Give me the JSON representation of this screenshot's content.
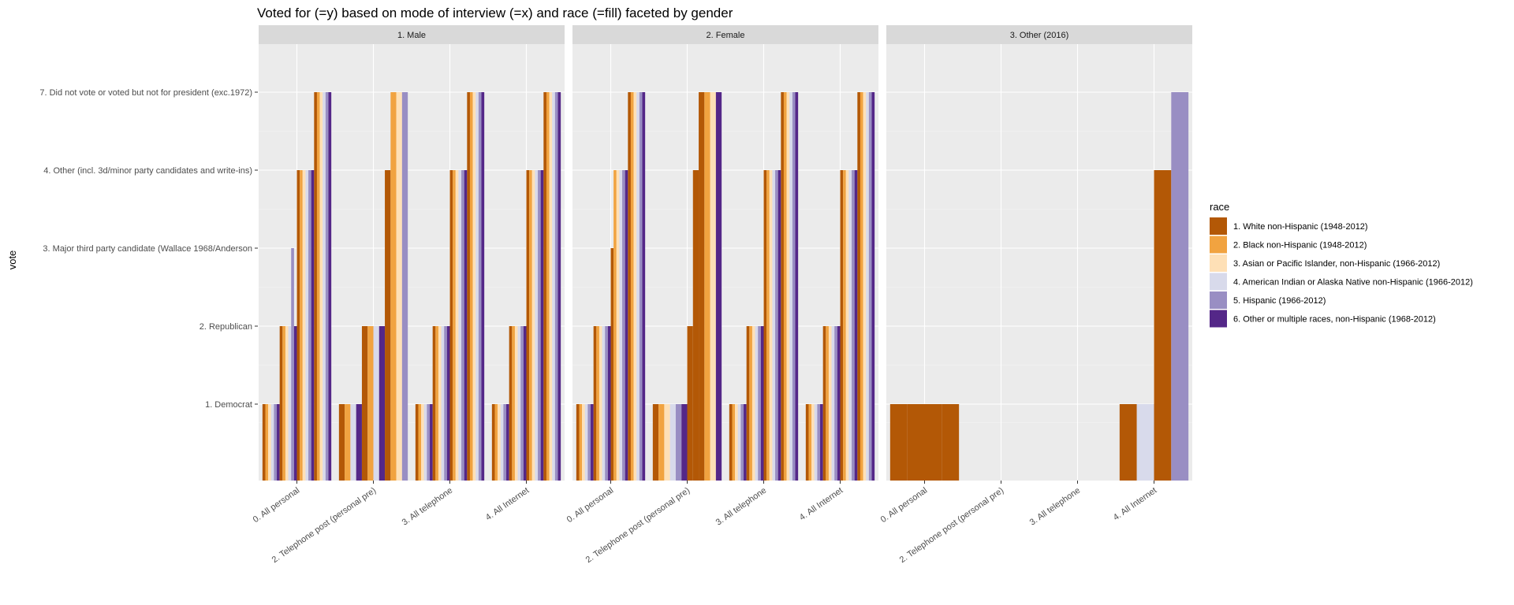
{
  "chart_data": {
    "type": "bar",
    "title": "Voted for (=y) based on mode of interview (=x) and race (=fill) faceted by gender",
    "xlabel": "",
    "ylabel": "vote",
    "y_levels": [
      "1. Democrat",
      "2. Republican",
      "3. Major third party candidate (Wallace 1968/Anderson",
      "4. Other (incl. 3d/minor party candidates and write-ins)",
      "7. Did not vote or voted but not for president (exc.1972)"
    ],
    "categories": [
      "0. All personal",
      "2. Telephone post (personal pre)",
      "3. All telephone",
      "4. All Internet"
    ],
    "facets": [
      "1. Male",
      "2. Female",
      "3. Other (2016)"
    ],
    "legend": {
      "title": "race",
      "position": "right",
      "entries": [
        "1. White non-Hispanic (1948-2012)",
        "2. Black non-Hispanic (1948-2012)",
        "3. Asian or Pacific Islander, non-Hispanic (1966-2012)",
        "4. American Indian or Alaska Native non-Hispanic (1966-2012)",
        "5. Hispanic (1966-2012)",
        "6. Other or multiple races, non-Hispanic (1968-2012)"
      ]
    },
    "colors": [
      "#b35806",
      "#f1a340",
      "#fee0b6",
      "#d8daeb",
      "#998ec3",
      "#542788"
    ],
    "grid": true,
    "panel_data": [
      {
        "facet": "1. Male",
        "groups": [
          {
            "category": "0. All personal",
            "bars": [
              {
                "race": 0,
                "vote": 1
              },
              {
                "race": 1,
                "vote": 1
              },
              {
                "race": 2,
                "vote": 1
              },
              {
                "race": 3,
                "vote": 1
              },
              {
                "race": 4,
                "vote": 1
              },
              {
                "race": 5,
                "vote": 1
              },
              {
                "race": 0,
                "vote": 2
              },
              {
                "race": 1,
                "vote": 2
              },
              {
                "race": 2,
                "vote": 2
              },
              {
                "race": 3,
                "vote": 2
              },
              {
                "race": 4,
                "vote": 3
              },
              {
                "race": 5,
                "vote": 2
              },
              {
                "race": 0,
                "vote": 4
              },
              {
                "race": 1,
                "vote": 4
              },
              {
                "race": 2,
                "vote": 4
              },
              {
                "race": 3,
                "vote": 4
              },
              {
                "race": 4,
                "vote": 4
              },
              {
                "race": 5,
                "vote": 4
              },
              {
                "race": 0,
                "vote": 5
              },
              {
                "race": 1,
                "vote": 5
              },
              {
                "race": 2,
                "vote": 5
              },
              {
                "race": 3,
                "vote": 5
              },
              {
                "race": 4,
                "vote": 5
              },
              {
                "race": 5,
                "vote": 5
              }
            ]
          },
          {
            "category": "2. Telephone post (personal pre)",
            "bars": [
              {
                "race": 0,
                "vote": 1
              },
              {
                "race": 1,
                "vote": 1
              },
              {
                "race": 3,
                "vote": 1
              },
              {
                "race": 5,
                "vote": 1
              },
              {
                "race": 0,
                "vote": 2
              },
              {
                "race": 1,
                "vote": 2
              },
              {
                "race": 3,
                "vote": 2
              },
              {
                "race": 5,
                "vote": 2
              },
              {
                "race": 0,
                "vote": 4
              },
              {
                "race": 1,
                "vote": 5
              },
              {
                "race": 2,
                "vote": 5
              },
              {
                "race": 4,
                "vote": 5
              }
            ]
          },
          {
            "category": "3. All telephone",
            "bars": [
              {
                "race": 0,
                "vote": 1
              },
              {
                "race": 1,
                "vote": 1
              },
              {
                "race": 2,
                "vote": 1
              },
              {
                "race": 3,
                "vote": 1
              },
              {
                "race": 4,
                "vote": 1
              },
              {
                "race": 5,
                "vote": 1
              },
              {
                "race": 0,
                "vote": 2
              },
              {
                "race": 1,
                "vote": 2
              },
              {
                "race": 2,
                "vote": 2
              },
              {
                "race": 3,
                "vote": 2
              },
              {
                "race": 4,
                "vote": 2
              },
              {
                "race": 5,
                "vote": 2
              },
              {
                "race": 0,
                "vote": 4
              },
              {
                "race": 1,
                "vote": 4
              },
              {
                "race": 2,
                "vote": 4
              },
              {
                "race": 3,
                "vote": 4
              },
              {
                "race": 4,
                "vote": 4
              },
              {
                "race": 5,
                "vote": 4
              },
              {
                "race": 0,
                "vote": 5
              },
              {
                "race": 1,
                "vote": 5
              },
              {
                "race": 2,
                "vote": 5
              },
              {
                "race": 3,
                "vote": 5
              },
              {
                "race": 4,
                "vote": 5
              },
              {
                "race": 5,
                "vote": 5
              }
            ]
          },
          {
            "category": "4. All Internet",
            "bars": [
              {
                "race": 0,
                "vote": 1
              },
              {
                "race": 1,
                "vote": 1
              },
              {
                "race": 2,
                "vote": 1
              },
              {
                "race": 3,
                "vote": 1
              },
              {
                "race": 4,
                "vote": 1
              },
              {
                "race": 5,
                "vote": 1
              },
              {
                "race": 0,
                "vote": 2
              },
              {
                "race": 1,
                "vote": 2
              },
              {
                "race": 2,
                "vote": 2
              },
              {
                "race": 3,
                "vote": 2
              },
              {
                "race": 4,
                "vote": 2
              },
              {
                "race": 5,
                "vote": 2
              },
              {
                "race": 0,
                "vote": 4
              },
              {
                "race": 1,
                "vote": 4
              },
              {
                "race": 2,
                "vote": 4
              },
              {
                "race": 3,
                "vote": 4
              },
              {
                "race": 4,
                "vote": 4
              },
              {
                "race": 5,
                "vote": 4
              },
              {
                "race": 0,
                "vote": 5
              },
              {
                "race": 1,
                "vote": 5
              },
              {
                "race": 2,
                "vote": 5
              },
              {
                "race": 3,
                "vote": 5
              },
              {
                "race": 4,
                "vote": 5
              },
              {
                "race": 5,
                "vote": 5
              }
            ]
          }
        ]
      },
      {
        "facet": "2. Female",
        "groups": [
          {
            "category": "0. All personal",
            "bars": [
              {
                "race": 0,
                "vote": 1
              },
              {
                "race": 1,
                "vote": 1
              },
              {
                "race": 2,
                "vote": 1
              },
              {
                "race": 3,
                "vote": 1
              },
              {
                "race": 4,
                "vote": 1
              },
              {
                "race": 5,
                "vote": 1
              },
              {
                "race": 0,
                "vote": 2
              },
              {
                "race": 1,
                "vote": 2
              },
              {
                "race": 2,
                "vote": 2
              },
              {
                "race": 3,
                "vote": 2
              },
              {
                "race": 4,
                "vote": 2
              },
              {
                "race": 5,
                "vote": 2
              },
              {
                "race": 0,
                "vote": 3
              },
              {
                "race": 1,
                "vote": 4
              },
              {
                "race": 2,
                "vote": 4
              },
              {
                "race": 3,
                "vote": 4
              },
              {
                "race": 4,
                "vote": 4
              },
              {
                "race": 5,
                "vote": 4
              },
              {
                "race": 0,
                "vote": 5
              },
              {
                "race": 1,
                "vote": 5
              },
              {
                "race": 2,
                "vote": 5
              },
              {
                "race": 3,
                "vote": 5
              },
              {
                "race": 4,
                "vote": 5
              },
              {
                "race": 5,
                "vote": 5
              }
            ]
          },
          {
            "category": "2. Telephone post (personal pre)",
            "bars": [
              {
                "race": 0,
                "vote": 1
              },
              {
                "race": 1,
                "vote": 1
              },
              {
                "race": 2,
                "vote": 1
              },
              {
                "race": 3,
                "vote": 1
              },
              {
                "race": 4,
                "vote": 1
              },
              {
                "race": 5,
                "vote": 1
              },
              {
                "race": 0,
                "vote": 2
              },
              {
                "race": 0,
                "vote": 4
              },
              {
                "race": 0,
                "vote": 5
              },
              {
                "race": 1,
                "vote": 5
              },
              {
                "race": 2,
                "vote": 5
              },
              {
                "race": 5,
                "vote": 5
              }
            ]
          },
          {
            "category": "3. All telephone",
            "bars": [
              {
                "race": 0,
                "vote": 1
              },
              {
                "race": 1,
                "vote": 1
              },
              {
                "race": 2,
                "vote": 1
              },
              {
                "race": 3,
                "vote": 1
              },
              {
                "race": 4,
                "vote": 1
              },
              {
                "race": 5,
                "vote": 1
              },
              {
                "race": 0,
                "vote": 2
              },
              {
                "race": 1,
                "vote": 2
              },
              {
                "race": 2,
                "vote": 2
              },
              {
                "race": 3,
                "vote": 2
              },
              {
                "race": 4,
                "vote": 2
              },
              {
                "race": 5,
                "vote": 2
              },
              {
                "race": 0,
                "vote": 4
              },
              {
                "race": 1,
                "vote": 4
              },
              {
                "race": 2,
                "vote": 4
              },
              {
                "race": 3,
                "vote": 4
              },
              {
                "race": 4,
                "vote": 4
              },
              {
                "race": 5,
                "vote": 4
              },
              {
                "race": 0,
                "vote": 5
              },
              {
                "race": 1,
                "vote": 5
              },
              {
                "race": 2,
                "vote": 5
              },
              {
                "race": 3,
                "vote": 5
              },
              {
                "race": 4,
                "vote": 5
              },
              {
                "race": 5,
                "vote": 5
              }
            ]
          },
          {
            "category": "4. All Internet",
            "bars": [
              {
                "race": 0,
                "vote": 1
              },
              {
                "race": 1,
                "vote": 1
              },
              {
                "race": 2,
                "vote": 1
              },
              {
                "race": 3,
                "vote": 1
              },
              {
                "race": 4,
                "vote": 1
              },
              {
                "race": 5,
                "vote": 1
              },
              {
                "race": 0,
                "vote": 2
              },
              {
                "race": 1,
                "vote": 2
              },
              {
                "race": 2,
                "vote": 2
              },
              {
                "race": 3,
                "vote": 2
              },
              {
                "race": 4,
                "vote": 2
              },
              {
                "race": 5,
                "vote": 2
              },
              {
                "race": 0,
                "vote": 4
              },
              {
                "race": 1,
                "vote": 4
              },
              {
                "race": 2,
                "vote": 4
              },
              {
                "race": 3,
                "vote": 4
              },
              {
                "race": 4,
                "vote": 4
              },
              {
                "race": 5,
                "vote": 4
              },
              {
                "race": 0,
                "vote": 5
              },
              {
                "race": 1,
                "vote": 5
              },
              {
                "race": 2,
                "vote": 5
              },
              {
                "race": 3,
                "vote": 5
              },
              {
                "race": 4,
                "vote": 5
              },
              {
                "race": 5,
                "vote": 5
              }
            ]
          }
        ]
      },
      {
        "facet": "3. Other (2016)",
        "groups": [
          {
            "category": "0. All personal",
            "bars": [
              {
                "race": 0,
                "vote": 1
              },
              {
                "race": 0,
                "vote": 1
              },
              {
                "race": 0,
                "vote": 1
              },
              {
                "race": 0,
                "vote": 1
              }
            ]
          },
          {
            "category": "2. Telephone post (personal pre)",
            "bars": []
          },
          {
            "category": "3. All telephone",
            "bars": []
          },
          {
            "category": "4. All Internet",
            "bars": [
              {
                "race": 0,
                "vote": 1
              },
              {
                "race": 3,
                "vote": 1
              },
              {
                "race": 0,
                "vote": 4
              },
              {
                "race": 4,
                "vote": 5
              }
            ]
          }
        ]
      }
    ]
  }
}
